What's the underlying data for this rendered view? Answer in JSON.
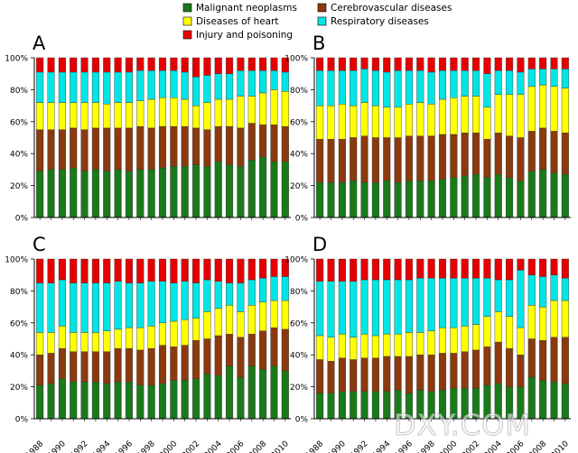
{
  "legend": [
    {
      "name": "Malignant neoplasms",
      "color": "#1a7a1a"
    },
    {
      "name": "Cerebrovascular diseases",
      "color": "#8b3a0e"
    },
    {
      "name": "Diseases of heart",
      "color": "#ffff00"
    },
    {
      "name": "Respiratory diseases",
      "color": "#00e5e5"
    },
    {
      "name": "Injury and poisoning",
      "color": "#e60000"
    }
  ],
  "y_ticks": [
    "0%",
    "20%",
    "40%",
    "60%",
    "80%",
    "100%"
  ],
  "x_tick_labels": [
    "1988",
    "1990",
    "1992",
    "1994",
    "1996",
    "1998",
    "2000",
    "2002",
    "2004",
    "2006",
    "2008",
    "2010"
  ],
  "watermark": "DXY.COM",
  "chart_data": [
    {
      "type": "bar",
      "stacked": true,
      "panel_label": "A",
      "ylim": [
        0,
        100
      ],
      "x": [
        1988,
        1989,
        1990,
        1991,
        1992,
        1993,
        1994,
        1995,
        1996,
        1997,
        1998,
        1999,
        2000,
        2001,
        2002,
        2003,
        2004,
        2005,
        2006,
        2007,
        2008,
        2009,
        2010
      ],
      "series": [
        {
          "name": "Malignant neoplasms",
          "values": [
            29,
            30,
            30,
            31,
            29,
            30,
            29,
            30,
            29,
            30,
            30,
            31,
            32,
            32,
            33,
            32,
            35,
            33,
            32,
            36,
            38,
            35,
            35
          ]
        },
        {
          "name": "Cerebrovascular diseases",
          "values": [
            26,
            25,
            25,
            25,
            26,
            26,
            27,
            26,
            27,
            27,
            26,
            26,
            25,
            25,
            23,
            23,
            22,
            24,
            24,
            23,
            20,
            23,
            22
          ]
        },
        {
          "name": "Diseases of heart",
          "values": [
            17,
            17,
            17,
            16,
            17,
            16,
            15,
            16,
            16,
            16,
            18,
            18,
            18,
            17,
            14,
            17,
            17,
            17,
            20,
            17,
            20,
            22,
            22
          ]
        },
        {
          "name": "Respiratory diseases",
          "values": [
            19,
            19,
            19,
            19,
            19,
            19,
            20,
            19,
            19,
            19,
            18,
            17,
            17,
            17,
            18,
            17,
            16,
            16,
            16,
            16,
            14,
            12,
            12
          ]
        },
        {
          "name": "Injury and poisoning",
          "values": [
            9,
            9,
            9,
            9,
            9,
            9,
            9,
            9,
            9,
            8,
            8,
            8,
            8,
            9,
            12,
            11,
            10,
            10,
            8,
            8,
            8,
            8,
            9
          ]
        }
      ]
    },
    {
      "type": "bar",
      "stacked": true,
      "panel_label": "B",
      "ylim": [
        0,
        100
      ],
      "x": [
        1988,
        1989,
        1990,
        1991,
        1992,
        1993,
        1994,
        1995,
        1996,
        1997,
        1998,
        1999,
        2000,
        2001,
        2002,
        2003,
        2004,
        2005,
        2006,
        2007,
        2008,
        2009,
        2010
      ],
      "series": [
        {
          "name": "Malignant neoplasms",
          "values": [
            22,
            22,
            22,
            23,
            22,
            22,
            23,
            22,
            23,
            23,
            23,
            24,
            25,
            26,
            27,
            25,
            27,
            25,
            23,
            29,
            30,
            28,
            27
          ]
        },
        {
          "name": "Cerebrovascular diseases",
          "values": [
            27,
            27,
            27,
            27,
            29,
            28,
            27,
            28,
            28,
            28,
            28,
            28,
            27,
            27,
            26,
            24,
            26,
            26,
            27,
            25,
            26,
            26,
            26
          ]
        },
        {
          "name": "Diseases of heart",
          "values": [
            21,
            21,
            22,
            20,
            21,
            20,
            19,
            19,
            20,
            21,
            20,
            22,
            23,
            23,
            23,
            20,
            24,
            26,
            27,
            28,
            27,
            28,
            28
          ]
        },
        {
          "name": "Respiratory diseases",
          "values": [
            22,
            22,
            21,
            22,
            21,
            22,
            22,
            23,
            21,
            20,
            20,
            18,
            17,
            16,
            16,
            21,
            15,
            15,
            14,
            11,
            10,
            11,
            12
          ]
        },
        {
          "name": "Injury and poisoning",
          "values": [
            8,
            8,
            8,
            8,
            7,
            8,
            9,
            8,
            8,
            8,
            9,
            8,
            8,
            8,
            8,
            10,
            8,
            8,
            9,
            7,
            7,
            7,
            7
          ]
        }
      ]
    },
    {
      "type": "bar",
      "stacked": true,
      "panel_label": "C",
      "ylim": [
        0,
        100
      ],
      "x": [
        1988,
        1989,
        1990,
        1991,
        1992,
        1993,
        1994,
        1995,
        1996,
        1997,
        1998,
        1999,
        2000,
        2001,
        2002,
        2003,
        2004,
        2005,
        2006,
        2007,
        2008,
        2009,
        2010
      ],
      "series": [
        {
          "name": "Malignant neoplasms",
          "values": [
            21,
            22,
            25,
            23,
            23,
            23,
            22,
            23,
            23,
            21,
            21,
            22,
            24,
            24,
            25,
            28,
            27,
            33,
            26,
            33,
            31,
            33,
            30
          ]
        },
        {
          "name": "Cerebrovascular diseases",
          "values": [
            19,
            19,
            19,
            19,
            19,
            19,
            20,
            21,
            21,
            22,
            23,
            24,
            21,
            22,
            24,
            22,
            25,
            20,
            25,
            20,
            24,
            24,
            26
          ]
        },
        {
          "name": "Diseases of heart",
          "values": [
            14,
            13,
            14,
            12,
            12,
            12,
            13,
            12,
            13,
            14,
            14,
            14,
            16,
            16,
            14,
            17,
            17,
            18,
            16,
            18,
            18,
            17,
            18
          ]
        },
        {
          "name": "Respiratory diseases",
          "values": [
            31,
            31,
            29,
            31,
            31,
            31,
            30,
            30,
            28,
            28,
            28,
            26,
            24,
            24,
            22,
            20,
            17,
            14,
            18,
            16,
            15,
            15,
            15
          ]
        },
        {
          "name": "Injury and poisoning",
          "values": [
            15,
            15,
            13,
            15,
            15,
            15,
            15,
            14,
            15,
            15,
            14,
            14,
            15,
            14,
            15,
            13,
            14,
            15,
            15,
            13,
            12,
            11,
            11
          ]
        }
      ]
    },
    {
      "type": "bar",
      "stacked": true,
      "panel_label": "D",
      "ylim": [
        0,
        100
      ],
      "x": [
        1988,
        1989,
        1990,
        1991,
        1992,
        1993,
        1994,
        1995,
        1996,
        1997,
        1998,
        1999,
        2000,
        2001,
        2002,
        2003,
        2004,
        2005,
        2006,
        2007,
        2008,
        2009,
        2010
      ],
      "series": [
        {
          "name": "Malignant neoplasms",
          "values": [
            16,
            16,
            17,
            17,
            17,
            17,
            17,
            18,
            16,
            18,
            17,
            18,
            19,
            19,
            19,
            21,
            22,
            20,
            20,
            26,
            24,
            23,
            22
          ]
        },
        {
          "name": "Cerebrovascular diseases",
          "values": [
            21,
            20,
            21,
            20,
            21,
            21,
            22,
            21,
            23,
            22,
            23,
            23,
            22,
            23,
            24,
            24,
            26,
            24,
            20,
            24,
            25,
            28,
            29
          ]
        },
        {
          "name": "Diseases of heart",
          "values": [
            15,
            15,
            15,
            14,
            15,
            14,
            14,
            14,
            15,
            14,
            15,
            16,
            16,
            16,
            16,
            19,
            19,
            20,
            17,
            21,
            21,
            23,
            23
          ]
        },
        {
          "name": "Respiratory diseases",
          "values": [
            34,
            35,
            33,
            35,
            34,
            35,
            34,
            34,
            33,
            34,
            33,
            31,
            31,
            30,
            29,
            24,
            20,
            23,
            36,
            19,
            19,
            16,
            14
          ]
        },
        {
          "name": "Injury and poisoning",
          "values": [
            14,
            14,
            14,
            14,
            13,
            13,
            13,
            13,
            13,
            12,
            12,
            12,
            12,
            12,
            12,
            12,
            13,
            13,
            7,
            10,
            11,
            10,
            12
          ]
        }
      ]
    }
  ]
}
